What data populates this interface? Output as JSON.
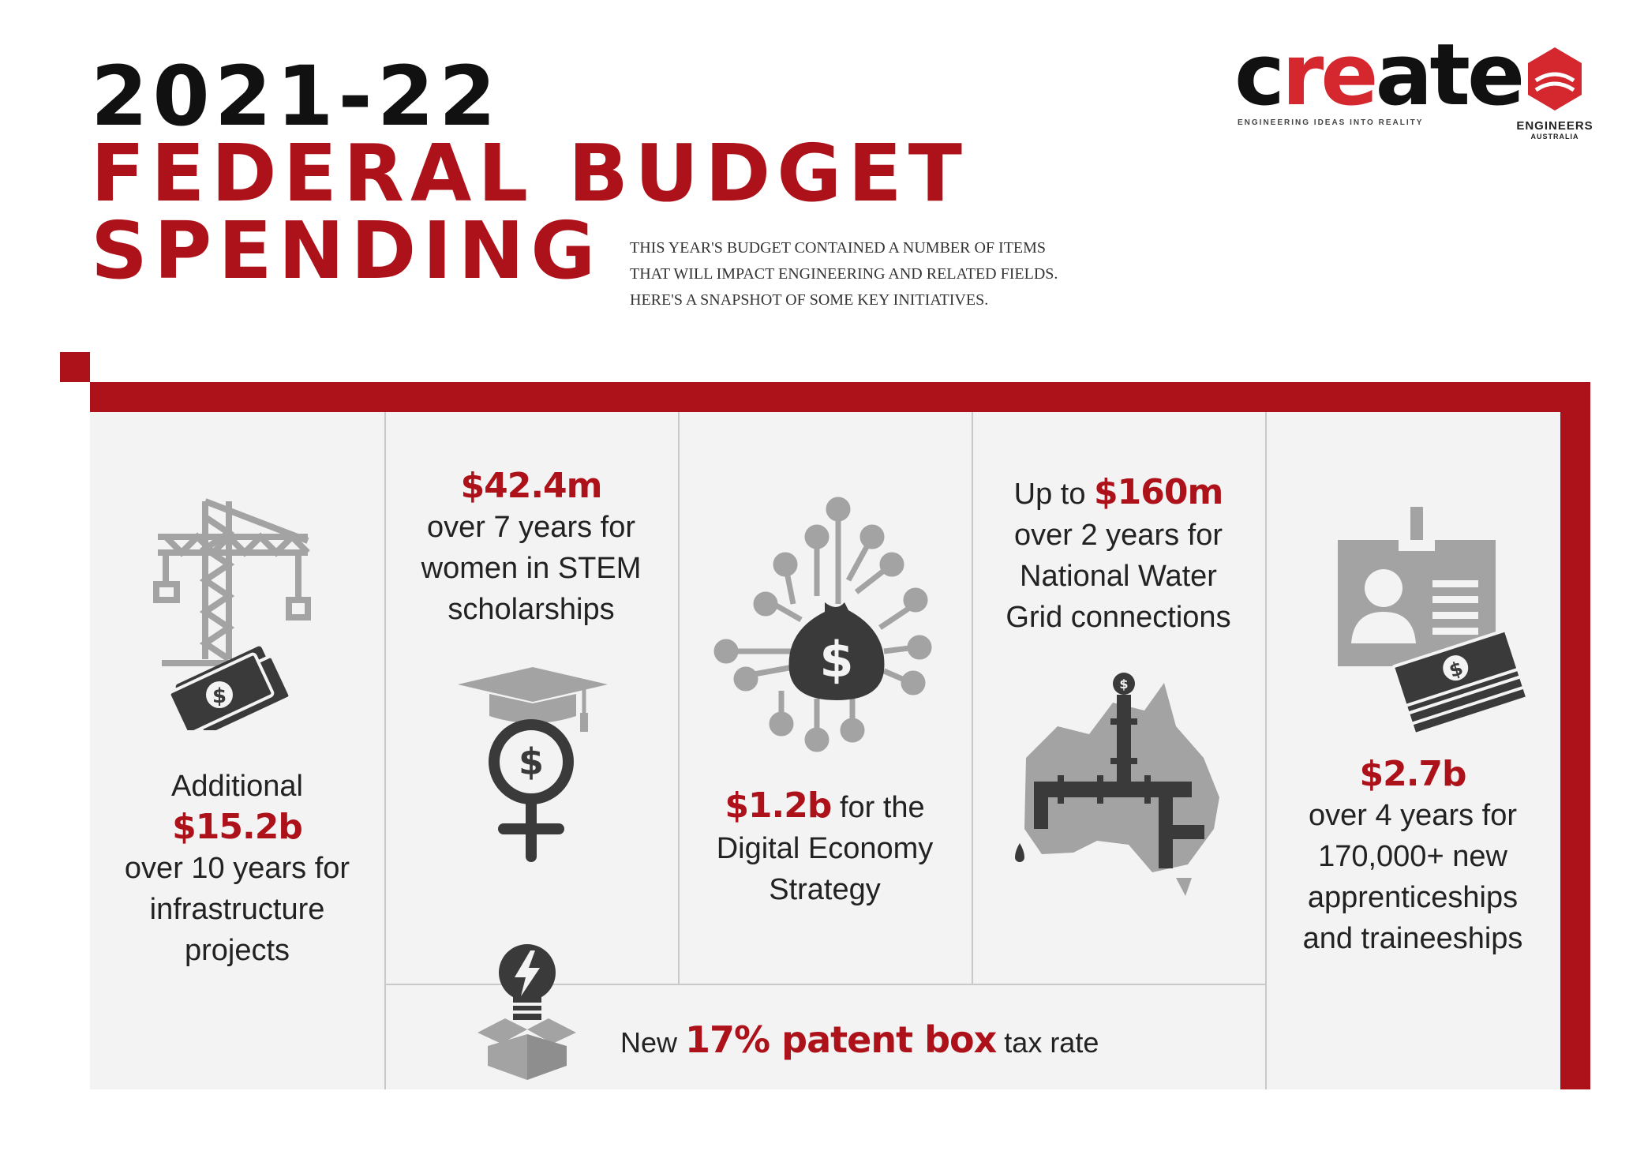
{
  "header": {
    "title_year": "2021-22",
    "title_line2": "FEDERAL BUDGET",
    "title_line3": "SPENDING",
    "intro": [
      "THIS YEAR'S BUDGET CONTAINED A NUMBER OF ITEMS",
      "THAT WILL IMPACT ENGINEERING AND RELATED FIELDS.",
      "HERE'S A SNAPSHOT OF SOME KEY INITIATIVES."
    ]
  },
  "logos": {
    "create_part1": "c",
    "create_part2": "re",
    "create_part3": "ate",
    "create_tagline": "ENGINEERING IDEAS INTO REALITY",
    "ea_line1": "ENGINEERS",
    "ea_line2": "AUSTRALIA"
  },
  "items": {
    "infrastructure": {
      "pre": "Additional",
      "amount": "$15.2b",
      "line1": "over 10 years for",
      "line2": "infrastructure",
      "line3": "projects",
      "icon": "crane-money-icon"
    },
    "stem": {
      "amount": "$42.4m",
      "line1": "over 7 years for",
      "line2": "women in STEM",
      "line3": "scholarships",
      "icon": "graduate-female-icon"
    },
    "digital": {
      "amount": "$1.2b",
      "suffix": "for the",
      "line1": "Digital Economy",
      "line2": "Strategy",
      "icon": "circuit-money-bag-icon"
    },
    "water": {
      "pre": "Up to",
      "amount": "$160m",
      "line1": "over 2 years for",
      "line2": "National Water",
      "line3": "Grid connections",
      "icon": "australia-pipes-icon"
    },
    "apprentice": {
      "amount": "$2.7b",
      "line1": "over 4 years for",
      "line2": "170,000+ new",
      "line3": "apprenticeships",
      "line4": "and traineeships",
      "icon": "id-card-money-icon"
    },
    "patent": {
      "pre": "New",
      "amount": "17% patent box",
      "post": "tax rate",
      "icon": "lightbulb-box-icon"
    }
  },
  "colors": {
    "brand_red": "#ad121b",
    "panel": "#f4f3f3",
    "icon_gray": "#a3a3a3",
    "icon_dark": "#3a3a3a"
  }
}
